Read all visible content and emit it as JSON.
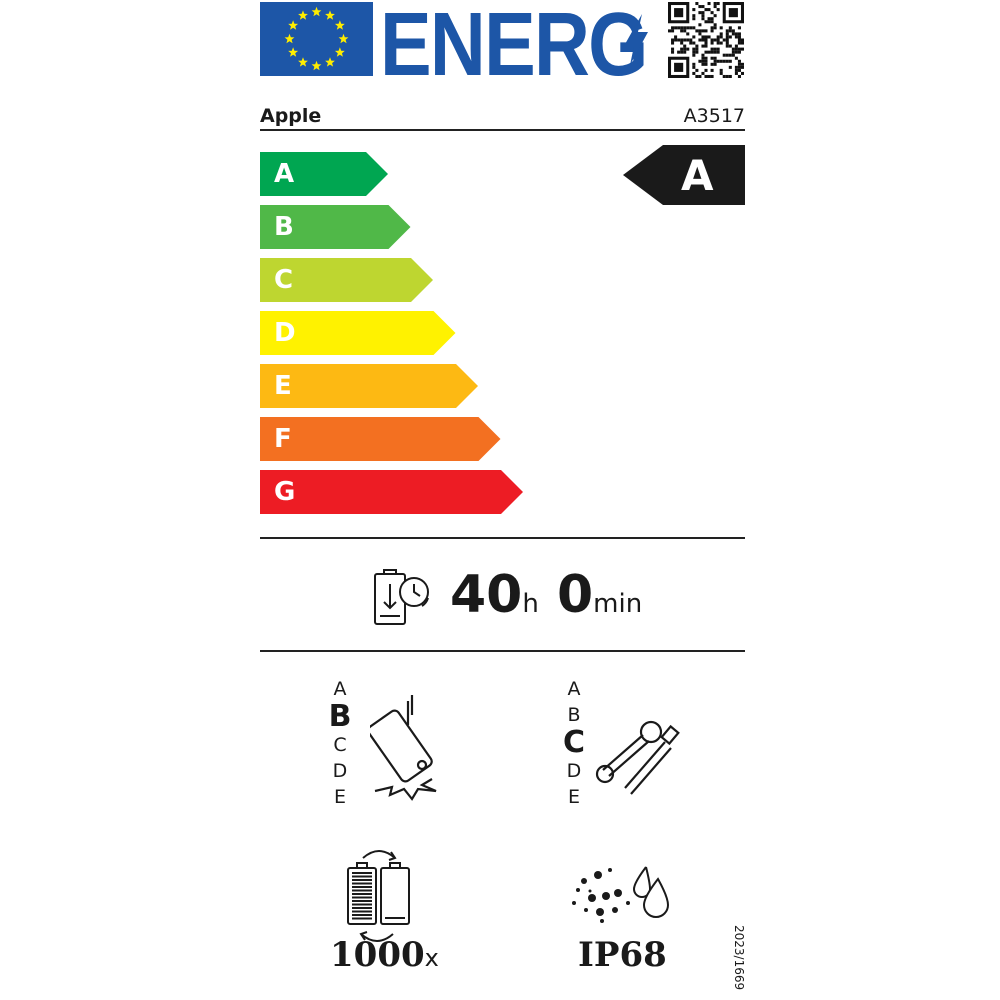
{
  "header": {
    "logo_text": "ENERG",
    "brand": "Apple",
    "model": "A3517"
  },
  "energy_scale": {
    "classes": [
      "A",
      "B",
      "C",
      "D",
      "E",
      "F",
      "G"
    ],
    "colors": [
      "#00a651",
      "#50b848",
      "#bed630",
      "#fff200",
      "#fdb913",
      "#f37021",
      "#ed1c24"
    ],
    "rated_class": "A"
  },
  "battery": {
    "hours": "40",
    "hours_unit": "h",
    "minutes": "0",
    "minutes_unit": "min",
    "icon": "battery-clock-icon"
  },
  "drop_resistance": {
    "scale": [
      "A",
      "B",
      "C",
      "D",
      "E"
    ],
    "selected": "B",
    "icon": "phone-drop-icon"
  },
  "repairability": {
    "scale": [
      "A",
      "B",
      "C",
      "D",
      "E"
    ],
    "selected": "C",
    "icon": "wrench-screwdriver-icon"
  },
  "battery_cycles": {
    "value": "1000",
    "unit": "x",
    "icon": "battery-cycles-icon"
  },
  "ingress": {
    "value": "IP68",
    "icon": "dust-water-icon"
  },
  "regulation": "2023/1669"
}
